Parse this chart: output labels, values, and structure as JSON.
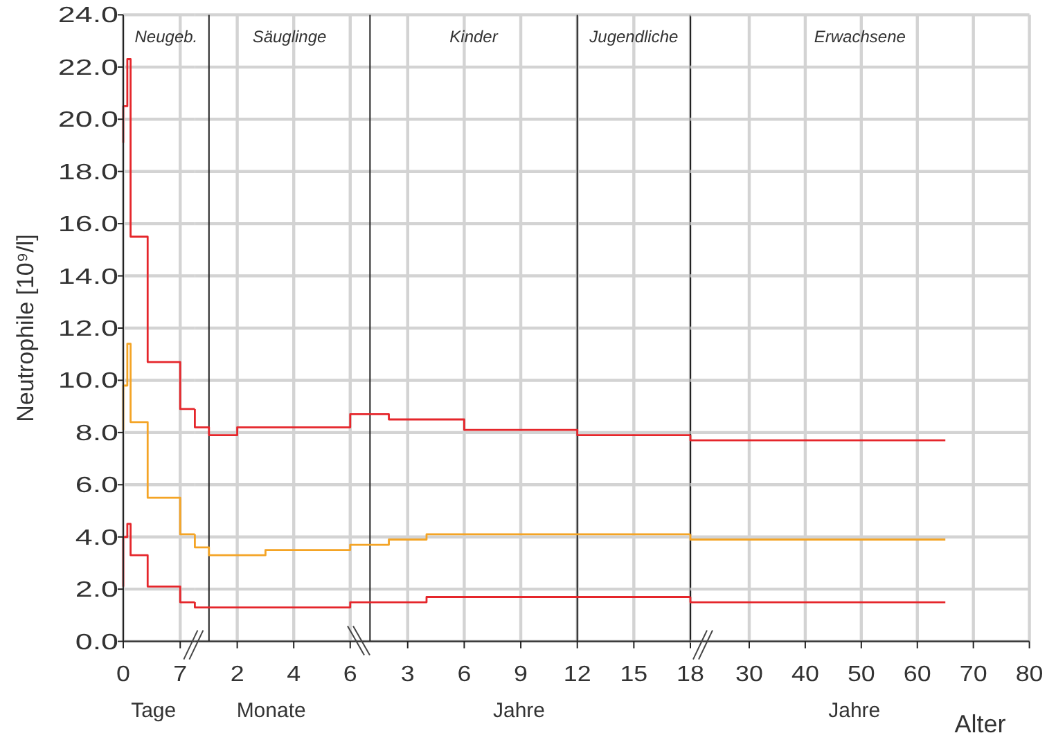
{
  "chart_data": [
    {
      "type": "step",
      "ylabel": "Neutrophile [10⁹/l]",
      "xlabel": "Tage",
      "xlim": [
        0,
        8.8
      ],
      "xticks": [
        0,
        7
      ],
      "ylim": [
        0,
        24
      ],
      "yticks": [
        {
          "value": 0,
          "label": "0.0"
        },
        {
          "value": 2,
          "label": "2.0"
        },
        {
          "value": 4,
          "label": "4.0"
        },
        {
          "value": 6,
          "label": "6.0"
        },
        {
          "value": 8,
          "label": "8.0"
        },
        {
          "value": 10,
          "label": "10.0"
        },
        {
          "value": 12,
          "label": "12.0"
        },
        {
          "value": 14,
          "label": "14.0"
        },
        {
          "value": 16,
          "label": "16.0"
        },
        {
          "value": 18,
          "label": "18.0"
        },
        {
          "value": 20,
          "label": "20.0"
        },
        {
          "value": 22,
          "label": "22.0"
        },
        {
          "value": 24,
          "label": "24.0"
        }
      ],
      "grid": true,
      "series": [
        {
          "color": "#e5262b",
          "x": [
            0,
            0,
            0.5,
            0.9,
            3,
            7,
            8.8
          ],
          "values": [
            19.1,
            20.5,
            22.3,
            15.5,
            10.7,
            8.9,
            8.9
          ]
        },
        {
          "color": "#f4a425",
          "x": [
            0,
            0,
            0.5,
            0.9,
            3,
            7,
            8.8
          ],
          "values": [
            8.1,
            9.8,
            11.4,
            8.4,
            5.5,
            4.1,
            4.1
          ]
        },
        {
          "color": "#e5262b",
          "x": [
            0,
            0,
            0.5,
            0.9,
            3,
            7,
            8.8
          ],
          "values": [
            2.1,
            4.0,
            4.5,
            3.3,
            2.1,
            1.5,
            1.5
          ]
        }
      ],
      "annotations": [
        "Neugeb."
      ]
    },
    {
      "type": "step",
      "xlabel": "Monate",
      "xlim": [
        0.5,
        6.3
      ],
      "xticks": [
        2,
        4,
        6
      ],
      "ylim": [
        0,
        24
      ],
      "yticks": [
        0,
        2,
        4,
        6,
        8,
        10,
        12,
        14,
        16,
        18,
        20,
        22,
        24
      ],
      "grid": true,
      "tick_labels": "x",
      "series": [
        {
          "color": "#e5262b",
          "x": [
            0.5,
            0.5,
            1,
            2,
            6,
            6.3
          ],
          "values": [
            8.9,
            8.2,
            7.9,
            8.2,
            8.7,
            8.7
          ]
        },
        {
          "color": "#f4a425",
          "x": [
            0.5,
            0.5,
            1,
            3,
            6,
            6.3
          ],
          "values": [
            4.1,
            3.6,
            3.3,
            3.5,
            3.7,
            3.7
          ]
        },
        {
          "color": "#e5262b",
          "x": [
            0.5,
            0.5,
            6,
            6.3
          ],
          "values": [
            1.5,
            1.3,
            1.5,
            1.5
          ]
        }
      ],
      "ref_lines": [
        {
          "axis": "x",
          "value": 1
        }
      ],
      "annotations": [
        "Säuglinge"
      ]
    },
    {
      "type": "step",
      "xlabel": "Jahre",
      "xlim": [
        0.4,
        18
      ],
      "xticks": [
        3,
        6,
        9,
        12,
        15,
        18
      ],
      "ylim": [
        0,
        24
      ],
      "yticks": [
        0,
        2,
        4,
        6,
        8,
        10,
        12,
        14,
        16,
        18,
        20,
        22,
        24
      ],
      "grid": true,
      "tick_labels": "x",
      "series": [
        {
          "color": "#e5262b",
          "x": [
            0.4,
            2,
            6,
            12,
            18
          ],
          "values": [
            8.7,
            8.5,
            8.1,
            7.9,
            7.9
          ]
        },
        {
          "color": "#f4a425",
          "x": [
            0.4,
            2,
            4,
            18
          ],
          "values": [
            3.7,
            3.9,
            4.1,
            4.1
          ]
        },
        {
          "color": "#e5262b",
          "x": [
            0.4,
            4,
            18
          ],
          "values": [
            1.5,
            1.7,
            1.7
          ]
        }
      ],
      "ref_lines": [
        {
          "axis": "x",
          "value": 1
        },
        {
          "axis": "x",
          "value": 12
        },
        {
          "axis": "x",
          "value": 18
        }
      ],
      "annotations": [
        "Kinder",
        "Jugendliche"
      ]
    },
    {
      "type": "step",
      "xlabel": "Jahre",
      "xlim": [
        19.5,
        80
      ],
      "xticks": [
        30,
        40,
        50,
        60,
        70,
        80
      ],
      "ylim": [
        0,
        24
      ],
      "yticks": [
        0,
        2,
        4,
        6,
        8,
        10,
        12,
        14,
        16,
        18,
        20,
        22,
        24
      ],
      "grid": true,
      "tick_labels": "x",
      "series": [
        {
          "color": "#e5262b",
          "x": [
            19.5,
            19.5,
            65
          ],
          "values": [
            7.9,
            7.7,
            7.7
          ]
        },
        {
          "color": "#f4a425",
          "x": [
            19.5,
            19.5,
            65
          ],
          "values": [
            4.1,
            3.9,
            3.9
          ]
        },
        {
          "color": "#e5262b",
          "x": [
            19.5,
            19.5,
            65
          ],
          "values": [
            1.7,
            1.5,
            1.5
          ]
        }
      ],
      "annotations": [
        "Erwachsene",
        "Alter"
      ]
    }
  ]
}
